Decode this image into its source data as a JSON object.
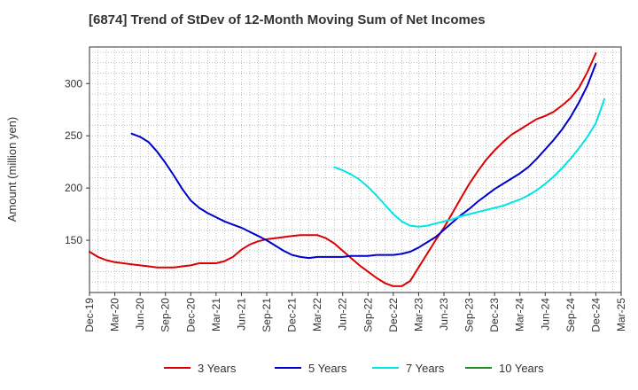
{
  "chart_data": {
    "type": "line",
    "title": "[6874]  Trend of StDev of 12-Month Moving Sum of Net Incomes",
    "ylabel": "Amount (million yen)",
    "xlabel": "",
    "x_ticks": [
      "Dec-19",
      "Mar-20",
      "Jun-20",
      "Sep-20",
      "Dec-20",
      "Mar-21",
      "Jun-21",
      "Sep-21",
      "Dec-21",
      "Mar-22",
      "Jun-22",
      "Sep-22",
      "Dec-22",
      "Mar-23",
      "Jun-23",
      "Sep-23",
      "Dec-23",
      "Mar-24",
      "Jun-24",
      "Sep-24",
      "Dec-24",
      "Mar-25"
    ],
    "y_ticks": [
      150,
      200,
      250,
      300
    ],
    "ylim": [
      100,
      335
    ],
    "xlim": [
      "Dec-19",
      "Mar-25"
    ],
    "grid": true,
    "legend_position": "bottom",
    "series": [
      {
        "name": "3 Years",
        "color": "#dd0000",
        "points": [
          [
            "Dec-19",
            139
          ],
          [
            "Jan-20",
            134
          ],
          [
            "Feb-20",
            131
          ],
          [
            "Mar-20",
            129
          ],
          [
            "Apr-20",
            128
          ],
          [
            "May-20",
            127
          ],
          [
            "Jun-20",
            126
          ],
          [
            "Jul-20",
            125
          ],
          [
            "Aug-20",
            124
          ],
          [
            "Sep-20",
            124
          ],
          [
            "Oct-20",
            124
          ],
          [
            "Nov-20",
            125
          ],
          [
            "Dec-20",
            126
          ],
          [
            "Jan-21",
            128
          ],
          [
            "Feb-21",
            128
          ],
          [
            "Mar-21",
            128
          ],
          [
            "Apr-21",
            130
          ],
          [
            "May-21",
            134
          ],
          [
            "Jun-21",
            141
          ],
          [
            "Jul-21",
            146
          ],
          [
            "Aug-21",
            149
          ],
          [
            "Sep-21",
            151
          ],
          [
            "Oct-21",
            152
          ],
          [
            "Nov-21",
            153
          ],
          [
            "Dec-21",
            154
          ],
          [
            "Jan-22",
            155
          ],
          [
            "Feb-22",
            155
          ],
          [
            "Mar-22",
            155
          ],
          [
            "Apr-22",
            152
          ],
          [
            "May-22",
            147
          ],
          [
            "Jun-22",
            140
          ],
          [
            "Jul-22",
            133
          ],
          [
            "Aug-22",
            126
          ],
          [
            "Sep-22",
            120
          ],
          [
            "Oct-22",
            114
          ],
          [
            "Nov-22",
            109
          ],
          [
            "Dec-22",
            106
          ],
          [
            "Jan-23",
            106
          ],
          [
            "Feb-23",
            111
          ],
          [
            "Mar-23",
            124
          ],
          [
            "Apr-23",
            137
          ],
          [
            "May-23",
            150
          ],
          [
            "Jun-23",
            162
          ],
          [
            "Jul-23",
            176
          ],
          [
            "Aug-23",
            190
          ],
          [
            "Sep-23",
            204
          ],
          [
            "Oct-23",
            216
          ],
          [
            "Nov-23",
            227
          ],
          [
            "Dec-23",
            236
          ],
          [
            "Jan-24",
            244
          ],
          [
            "Feb-24",
            251
          ],
          [
            "Mar-24",
            256
          ],
          [
            "Apr-24",
            261
          ],
          [
            "May-24",
            266
          ],
          [
            "Jun-24",
            269
          ],
          [
            "Jul-24",
            273
          ],
          [
            "Aug-24",
            279
          ],
          [
            "Sep-24",
            286
          ],
          [
            "Oct-24",
            296
          ],
          [
            "Nov-24",
            311
          ],
          [
            "Dec-24",
            329
          ]
        ]
      },
      {
        "name": "5 Years",
        "color": "#0000cc",
        "points": [
          [
            "May-20",
            252
          ],
          [
            "Jun-20",
            249
          ],
          [
            "Jul-20",
            244
          ],
          [
            "Aug-20",
            235
          ],
          [
            "Sep-20",
            224
          ],
          [
            "Oct-20",
            212
          ],
          [
            "Nov-20",
            199
          ],
          [
            "Dec-20",
            188
          ],
          [
            "Jan-21",
            181
          ],
          [
            "Feb-21",
            176
          ],
          [
            "Mar-21",
            172
          ],
          [
            "Apr-21",
            168
          ],
          [
            "May-21",
            165
          ],
          [
            "Jun-21",
            162
          ],
          [
            "Jul-21",
            158
          ],
          [
            "Aug-21",
            154
          ],
          [
            "Sep-21",
            150
          ],
          [
            "Oct-21",
            145
          ],
          [
            "Nov-21",
            140
          ],
          [
            "Dec-21",
            136
          ],
          [
            "Jan-22",
            134
          ],
          [
            "Feb-22",
            133
          ],
          [
            "Mar-22",
            134
          ],
          [
            "Apr-22",
            134
          ],
          [
            "May-22",
            134
          ],
          [
            "Jun-22",
            134
          ],
          [
            "Jul-22",
            135
          ],
          [
            "Aug-22",
            135
          ],
          [
            "Sep-22",
            135
          ],
          [
            "Oct-22",
            136
          ],
          [
            "Nov-22",
            136
          ],
          [
            "Dec-22",
            136
          ],
          [
            "Jan-23",
            137
          ],
          [
            "Feb-23",
            139
          ],
          [
            "Mar-23",
            143
          ],
          [
            "Apr-23",
            148
          ],
          [
            "May-23",
            153
          ],
          [
            "Jun-23",
            160
          ],
          [
            "Jul-23",
            167
          ],
          [
            "Aug-23",
            174
          ],
          [
            "Sep-23",
            180
          ],
          [
            "Oct-23",
            187
          ],
          [
            "Nov-23",
            193
          ],
          [
            "Dec-23",
            199
          ],
          [
            "Jan-24",
            204
          ],
          [
            "Feb-24",
            209
          ],
          [
            "Mar-24",
            214
          ],
          [
            "Apr-24",
            220
          ],
          [
            "May-24",
            228
          ],
          [
            "Jun-24",
            237
          ],
          [
            "Jul-24",
            246
          ],
          [
            "Aug-24",
            256
          ],
          [
            "Sep-24",
            268
          ],
          [
            "Oct-24",
            282
          ],
          [
            "Nov-24",
            298
          ],
          [
            "Dec-24",
            319
          ]
        ]
      },
      {
        "name": "7 Years",
        "color": "#00e5e5",
        "points": [
          [
            "May-22",
            220
          ],
          [
            "Jun-22",
            217
          ],
          [
            "Jul-22",
            213
          ],
          [
            "Aug-22",
            208
          ],
          [
            "Sep-22",
            201
          ],
          [
            "Oct-22",
            193
          ],
          [
            "Nov-22",
            184
          ],
          [
            "Dec-22",
            175
          ],
          [
            "Jan-23",
            168
          ],
          [
            "Feb-23",
            164
          ],
          [
            "Mar-23",
            163
          ],
          [
            "Apr-23",
            164
          ],
          [
            "May-23",
            166
          ],
          [
            "Jun-23",
            168
          ],
          [
            "Jul-23",
            170
          ],
          [
            "Aug-23",
            173
          ],
          [
            "Sep-23",
            175
          ],
          [
            "Oct-23",
            177
          ],
          [
            "Nov-23",
            179
          ],
          [
            "Dec-23",
            181
          ],
          [
            "Jan-24",
            183
          ],
          [
            "Feb-24",
            186
          ],
          [
            "Mar-24",
            189
          ],
          [
            "Apr-24",
            193
          ],
          [
            "May-24",
            198
          ],
          [
            "Jun-24",
            204
          ],
          [
            "Jul-24",
            211
          ],
          [
            "Aug-24",
            219
          ],
          [
            "Sep-24",
            228
          ],
          [
            "Oct-24",
            238
          ],
          [
            "Nov-24",
            249
          ],
          [
            "Dec-24",
            262
          ],
          [
            "Jan-25",
            285
          ]
        ]
      },
      {
        "name": "10 Years",
        "color": "#228b22",
        "points": []
      }
    ]
  }
}
